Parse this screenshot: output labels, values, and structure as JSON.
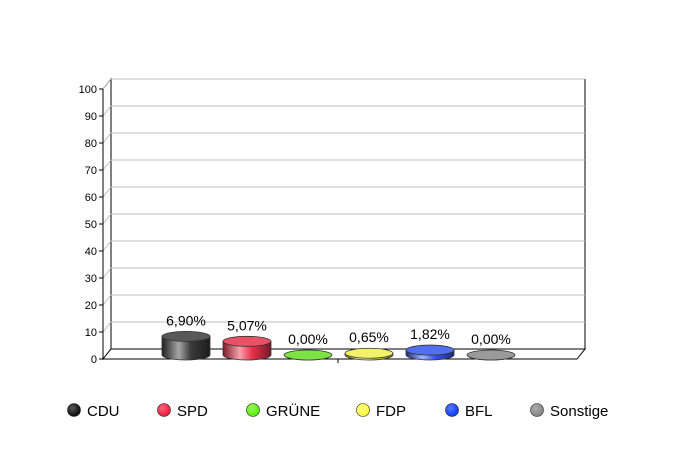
{
  "chart_data": {
    "type": "bar",
    "style": "3d-cylinder",
    "categories": [
      "CDU",
      "SPD",
      "GRÜNE",
      "FDP",
      "BFL",
      "Sonstige"
    ],
    "values": [
      6.9,
      5.07,
      0.0,
      0.65,
      1.82,
      0.0
    ],
    "value_labels": [
      "6,90%",
      "5,07%",
      "0,00%",
      "0,65%",
      "1,82%",
      "0,00%"
    ],
    "colors": [
      "#3a3a3a",
      "#e8324a",
      "#66dd22",
      "#f0f050",
      "#3355ee",
      "#888888"
    ],
    "legend_colors": [
      "#000000",
      "#ee1133",
      "#55ee00",
      "#ffff33",
      "#0033ff",
      "#808080"
    ],
    "ylim": [
      0,
      100
    ],
    "yticks": [
      "0",
      "10",
      "20",
      "30",
      "40",
      "50",
      "60",
      "70",
      "80",
      "90",
      "100"
    ],
    "grid": true,
    "legend": "bottom",
    "title": "",
    "xlabel": "",
    "ylabel": ""
  }
}
